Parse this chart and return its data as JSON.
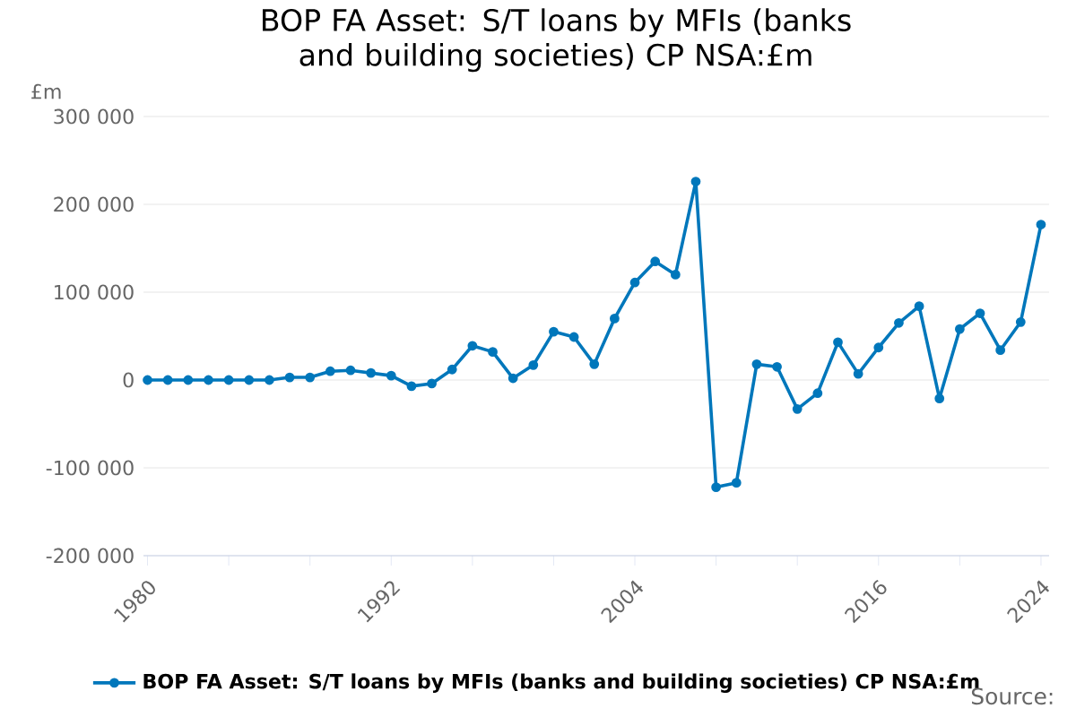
{
  "chart_data": {
    "type": "line",
    "title": "BOP FA Asset: S/T loans by MFIs (banks and building societies) CP NSA:£m",
    "ylabel": "£m",
    "annotations": [
      "Source:"
    ],
    "x": [
      1980,
      1981,
      1982,
      1983,
      1984,
      1985,
      1986,
      1987,
      1988,
      1989,
      1990,
      1991,
      1992,
      1993,
      1994,
      1995,
      1996,
      1997,
      1998,
      1999,
      2000,
      2001,
      2002,
      2003,
      2004,
      2005,
      2006,
      2007,
      2008,
      2009,
      2010,
      2011,
      2012,
      2013,
      2014,
      2015,
      2016,
      2017,
      2018,
      2019,
      2020,
      2021,
      2022,
      2023,
      2024
    ],
    "series": [
      {
        "name": "BOP FA Asset: S/T loans by MFIs (banks and building societies) CP NSA:£m",
        "color": "#0077bb",
        "values": [
          0,
          0,
          0,
          0,
          0,
          0,
          0,
          3000,
          3000,
          10000,
          11000,
          8000,
          5000,
          -7000,
          -4000,
          12000,
          39000,
          32000,
          2000,
          17000,
          55000,
          49000,
          18000,
          70000,
          111000,
          135000,
          120000,
          226000,
          -122000,
          -117000,
          18000,
          15000,
          -33000,
          -15000,
          43000,
          7000,
          37000,
          65000,
          84000,
          -21000,
          58000,
          76000,
          34000,
          66000,
          177000
        ]
      }
    ],
    "xlim": [
      1979.8,
      2024.4
    ],
    "ylim": [
      -200000,
      300000
    ],
    "xticks": [
      1980,
      {
        "value": 1984,
        "label": null
      },
      {
        "value": 1988,
        "label": null
      },
      1992,
      {
        "value": 1996,
        "label": null
      },
      {
        "value": 2000,
        "label": null
      },
      2004,
      {
        "value": 2008,
        "label": null
      },
      {
        "value": 2012,
        "label": null
      },
      2016,
      {
        "value": 2020,
        "label": null
      },
      2024
    ],
    "yticks": [
      {
        "value": -200000,
        "label": "-200 000"
      },
      {
        "value": -100000,
        "label": "-100 000"
      },
      0,
      {
        "value": 100000,
        "label": "100 000"
      },
      {
        "value": 200000,
        "label": "200 000"
      },
      {
        "value": 300000,
        "label": "300 000"
      }
    ],
    "grid": "y",
    "legend": "bottom",
    "marker": "circle",
    "line_style": "solid"
  }
}
